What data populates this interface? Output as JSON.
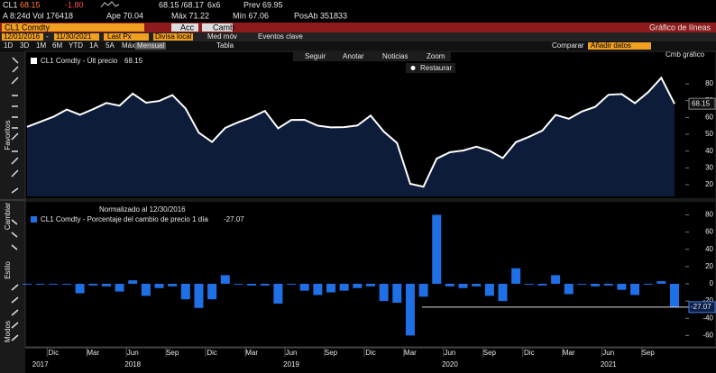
{
  "header": {
    "row1": [
      "CL1",
      "68.15",
      "-1.80",
      "68.15 /68.17",
      "6x6",
      "Prev 69.95"
    ],
    "row2": [
      "A 8:24d",
      "Vol 176418",
      "Ape 70.04",
      "Máx 71.22",
      "Mín 67.06",
      "PosAb 351833"
    ],
    "security": "CL1 Comdty",
    "actions": "Acc",
    "change": "Camb",
    "view": "Gráfico de líneas",
    "start_date": "12/01/2016",
    "end_date": "11/30/2021",
    "field": "Last Px",
    "currency": "Divisa local",
    "moving_avg": "Med móv",
    "events": "Eventos clave",
    "periods": [
      "1D",
      "3D",
      "1M",
      "6M",
      "YTD",
      "1A",
      "5A",
      "Máx"
    ],
    "frequency": "Mensual",
    "table": "Tabla",
    "compare": "Comparar",
    "add_data": "Añadir datos",
    "chart_change": "Cmb gráfico"
  },
  "toolbar": {
    "follow": "Seguir",
    "annotate": "Anotar",
    "news": "Noticias",
    "zoom": "Zoom",
    "reset": "Restaurar"
  },
  "sidebar": [
    "Favoritos",
    "Cambiar",
    "Estilo",
    "Modos"
  ],
  "chart_data": [
    {
      "type": "area",
      "legend": "CL1 Comdty - Últ precio",
      "color": "#ffffff",
      "fill": "#0d1c38",
      "values": [
        54.4,
        57.4,
        60.4,
        64.7,
        61.6,
        64.9,
        68.6,
        67.0,
        74.2,
        68.8,
        69.8,
        73.3,
        65.3,
        50.9,
        45.4,
        53.8,
        57.2,
        60.1,
        63.9,
        53.5,
        58.5,
        58.6,
        55.1,
        54.1,
        54.2,
        55.2,
        61.1,
        51.6,
        44.8,
        20.5,
        18.8,
        35.5,
        39.3,
        40.3,
        42.6,
        40.2,
        35.8,
        45.3,
        48.5,
        52.2,
        61.5,
        59.2,
        63.6,
        66.3,
        73.5,
        73.9,
        68.5,
        75.0,
        83.6,
        68.15
      ],
      "ylim": [
        13,
        87
      ],
      "yticks": [
        20,
        30,
        40,
        50,
        60,
        70,
        80
      ]
    },
    {
      "type": "bar",
      "note": "Normalizado al 12/30/2016",
      "legend": "CL1 Comdty - Porcentaje del cambio de precio 1 día",
      "color": "#1f6fe6",
      "values": [
        -1,
        -1,
        -1,
        -1,
        -11,
        -2,
        -3,
        -9,
        4,
        -14,
        -5,
        -3,
        -18,
        -28,
        -18,
        10,
        -1,
        -2,
        -2,
        -23,
        -1,
        -8,
        -13,
        -10,
        -8,
        -5,
        -3,
        -20,
        -22,
        -60,
        -15,
        80,
        -3,
        -5,
        -3,
        -14,
        -20,
        18,
        -1,
        -2,
        10,
        -12,
        -1,
        -3,
        -2,
        -7,
        -13,
        -1,
        3,
        -27.07
      ],
      "ylim": [
        -69,
        93
      ],
      "yticks": [
        -60,
        -40,
        -20,
        0,
        20,
        40,
        60,
        80
      ],
      "xlim": [
        0,
        49
      ],
      "xticks": [
        {
          "value": 2,
          "label": "Dic"
        },
        {
          "value": 5,
          "label": "Mar"
        },
        {
          "value": 8,
          "label": "Jun"
        },
        {
          "value": 11,
          "label": "Sep"
        },
        {
          "value": 14,
          "label": "Dic"
        },
        {
          "value": 17,
          "label": "Mar"
        },
        {
          "value": 20,
          "label": "Jun"
        },
        {
          "value": 23,
          "label": "Sep"
        },
        {
          "value": 26,
          "label": "Dic"
        },
        {
          "value": 29,
          "label": "Mar"
        },
        {
          "value": 32,
          "label": "Jun"
        },
        {
          "value": 35,
          "label": "Sep"
        },
        {
          "value": 38,
          "label": "Dic"
        },
        {
          "value": 41,
          "label": "Mar"
        },
        {
          "value": 44,
          "label": "Jun"
        },
        {
          "value": 47,
          "label": "Sep"
        }
      ],
      "year_ticks": [
        {
          "value": 1,
          "label": "2017"
        },
        {
          "value": 8,
          "label": "2018"
        },
        {
          "value": 20,
          "label": "2019"
        },
        {
          "value": 32,
          "label": "2020"
        },
        {
          "value": 44,
          "label": "2021"
        }
      ]
    }
  ]
}
